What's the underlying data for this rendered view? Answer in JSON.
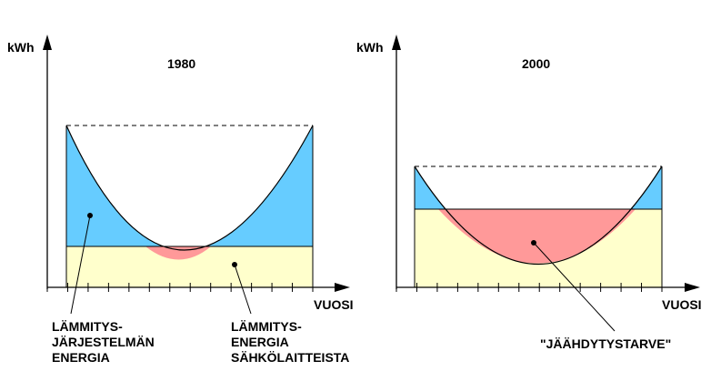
{
  "colors": {
    "heating_system": "#66ccff",
    "appliance_heat": "#ffffcc",
    "cooling_need": "#ff9999",
    "line": "#000000"
  },
  "panels": [
    {
      "title": "1980",
      "y_axis_label": "kWh",
      "x_axis_label": "VUOSI"
    },
    {
      "title": "2000",
      "y_axis_label": "kWh",
      "x_axis_label": "VUOSI"
    }
  ],
  "labels": {
    "heating_system": [
      "LÄMMITYS-",
      "JÄRJESTELMÄN",
      "ENERGIA"
    ],
    "appliance_heat": [
      "LÄMMITYS-",
      "ENERGIA",
      "SÄHKÖLAITTEISTA"
    ],
    "cooling_need": "\"JÄÄHDYTYSTARVE\""
  }
}
